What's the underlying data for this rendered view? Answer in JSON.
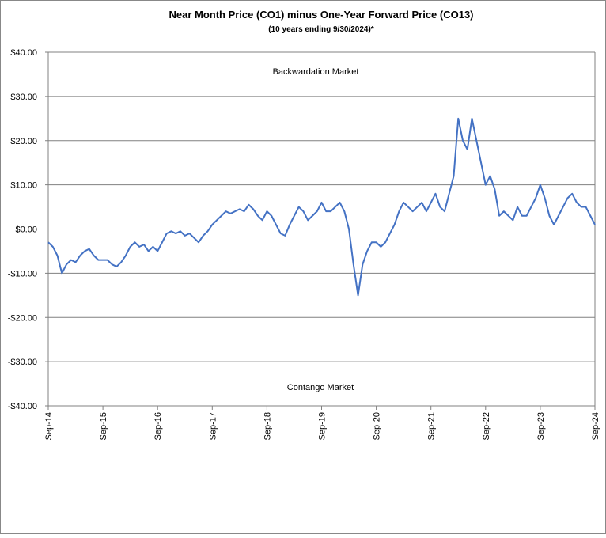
{
  "chart_data": {
    "type": "line",
    "title": "Near Month Price (CO1) minus One-Year Forward Price (CO13)",
    "subtitle": "(10 years ending  9/30/2024)*",
    "annotations": [
      "Backwardation Market",
      "Contango Market"
    ],
    "color": "#4472c4",
    "grid": true,
    "x": [
      "2014-09",
      "2014-10",
      "2014-11",
      "2014-12",
      "2015-01",
      "2015-02",
      "2015-03",
      "2015-04",
      "2015-05",
      "2015-06",
      "2015-07",
      "2015-08",
      "2015-09",
      "2015-10",
      "2015-11",
      "2015-12",
      "2016-01",
      "2016-02",
      "2016-03",
      "2016-04",
      "2016-05",
      "2016-06",
      "2016-07",
      "2016-08",
      "2016-09",
      "2016-10",
      "2016-11",
      "2016-12",
      "2017-01",
      "2017-02",
      "2017-03",
      "2017-04",
      "2017-05",
      "2017-06",
      "2017-07",
      "2017-08",
      "2017-09",
      "2017-10",
      "2017-11",
      "2017-12",
      "2018-01",
      "2018-02",
      "2018-03",
      "2018-04",
      "2018-05",
      "2018-06",
      "2018-07",
      "2018-08",
      "2018-09",
      "2018-10",
      "2018-11",
      "2018-12",
      "2019-01",
      "2019-02",
      "2019-03",
      "2019-04",
      "2019-05",
      "2019-06",
      "2019-07",
      "2019-08",
      "2019-09",
      "2019-10",
      "2019-11",
      "2019-12",
      "2020-01",
      "2020-02",
      "2020-03",
      "2020-04",
      "2020-05",
      "2020-06",
      "2020-07",
      "2020-08",
      "2020-09",
      "2020-10",
      "2020-11",
      "2020-12",
      "2021-01",
      "2021-02",
      "2021-03",
      "2021-04",
      "2021-05",
      "2021-06",
      "2021-07",
      "2021-08",
      "2021-09",
      "2021-10",
      "2021-11",
      "2021-12",
      "2022-01",
      "2022-02",
      "2022-03",
      "2022-04",
      "2022-05",
      "2022-06",
      "2022-07",
      "2022-08",
      "2022-09",
      "2022-10",
      "2022-11",
      "2022-12",
      "2023-01",
      "2023-02",
      "2023-03",
      "2023-04",
      "2023-05",
      "2023-06",
      "2023-07",
      "2023-08",
      "2023-09",
      "2023-10",
      "2023-11",
      "2023-12",
      "2024-01",
      "2024-02",
      "2024-03",
      "2024-04",
      "2024-05",
      "2024-06",
      "2024-07",
      "2024-08",
      "2024-09"
    ],
    "values": [
      -3,
      -4,
      -6,
      -10,
      -8,
      -7,
      -7.5,
      -6,
      -5,
      -4.5,
      -6,
      -7,
      -7,
      -7,
      -8,
      -8.5,
      -7.5,
      -6,
      -4,
      -3,
      -4,
      -3.5,
      -5,
      -4,
      -5,
      -3,
      -1,
      -0.5,
      -1,
      -0.5,
      -1.5,
      -1,
      -2,
      -3,
      -1.5,
      -0.5,
      1,
      2,
      3,
      4,
      3.5,
      4,
      4.5,
      4,
      5.5,
      4.5,
      3,
      2,
      4,
      3,
      1,
      -1,
      -1.5,
      1,
      3,
      5,
      4,
      2,
      3,
      4,
      6,
      4,
      4,
      5,
      6,
      4,
      0,
      -8,
      -15,
      -8,
      -5,
      -3,
      -3,
      -4,
      -3,
      -1,
      1,
      4,
      6,
      5,
      4,
      5,
      6,
      4,
      6,
      8,
      5,
      4,
      8,
      12,
      25,
      20,
      18,
      25,
      20,
      15,
      10,
      12,
      9,
      3,
      4,
      3,
      2,
      5,
      3,
      3,
      5,
      7,
      10,
      7,
      3,
      1,
      3,
      5,
      7,
      8,
      6,
      5,
      5,
      3,
      1
    ],
    "xticks": [
      {
        "value": "2014-09",
        "label": "Sep-14"
      },
      {
        "value": "2015-09",
        "label": "Sep-15"
      },
      {
        "value": "2016-09",
        "label": "Sep-16"
      },
      {
        "value": "2017-09",
        "label": "Sep-17"
      },
      {
        "value": "2018-09",
        "label": "Sep-18"
      },
      {
        "value": "2019-09",
        "label": "Sep-19"
      },
      {
        "value": "2020-09",
        "label": "Sep-20"
      },
      {
        "value": "2021-09",
        "label": "Sep-21"
      },
      {
        "value": "2022-09",
        "label": "Sep-22"
      },
      {
        "value": "2023-09",
        "label": "Sep-23"
      },
      {
        "value": "2024-09",
        "label": "Sep-24"
      }
    ],
    "xlim": [
      "2014-09",
      "2024-09"
    ],
    "ylim": [
      -40,
      40
    ],
    "yticks": [
      {
        "value": 40,
        "label": "$40.00"
      },
      {
        "value": 30,
        "label": "$30.00"
      },
      {
        "value": 20,
        "label": "$20.00"
      },
      {
        "value": 10,
        "label": "$10.00"
      },
      {
        "value": 0,
        "label": "$0.00"
      },
      {
        "value": -10,
        "label": "-$10.00"
      },
      {
        "value": -20,
        "label": "-$20.00"
      },
      {
        "value": -30,
        "label": "-$30.00"
      },
      {
        "value": -40,
        "label": "-$40.00"
      }
    ]
  }
}
